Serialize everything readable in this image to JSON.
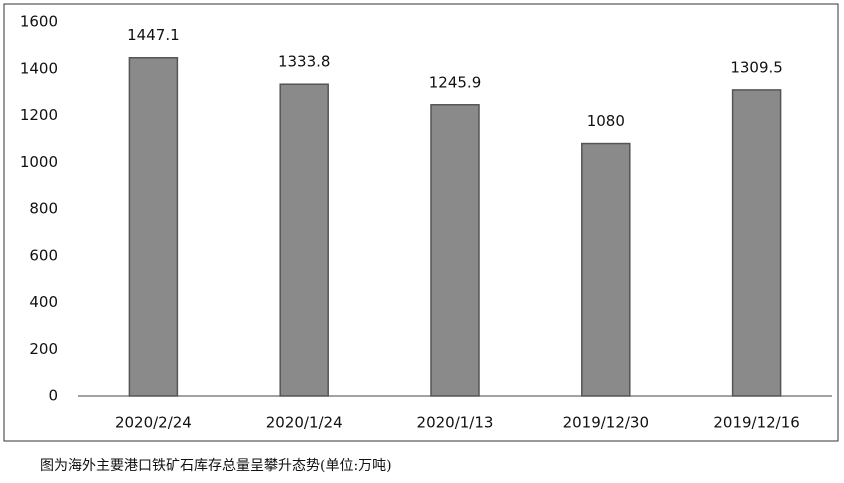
{
  "chart_data": {
    "type": "bar",
    "caption": "图为海外主要港口铁矿石库存总量呈攀升态势(单位:万吨)",
    "categories": [
      "2020/2/24",
      "2020/1/24",
      "2020/1/13",
      "2019/12/30",
      "2019/12/16"
    ],
    "values": [
      1447.1,
      1333.8,
      1245.9,
      1080,
      1309.5
    ],
    "color": "#8a8a8a",
    "ylim": [
      0,
      1600
    ],
    "yticks": [
      0,
      200,
      400,
      600,
      800,
      1000,
      1200,
      1400,
      1600
    ],
    "grid": false
  }
}
